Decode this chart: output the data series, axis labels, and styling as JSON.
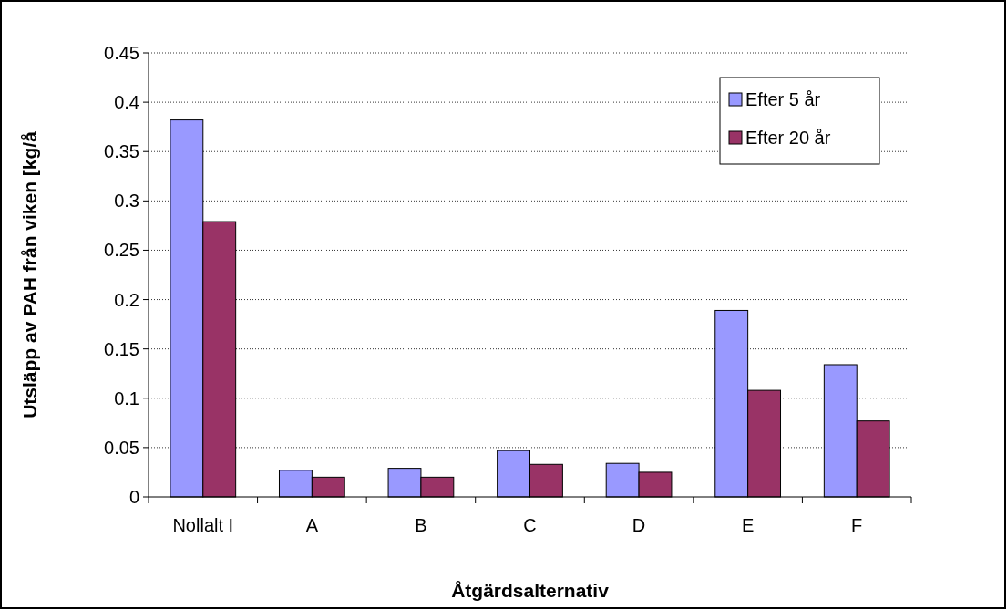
{
  "chart_data": {
    "type": "bar",
    "xlabel": "Åtgärdsalternativ",
    "ylabel": "Utsläpp av PAH från viken [kg/å",
    "categories": [
      "Nollalt I",
      "A",
      "B",
      "C",
      "D",
      "E",
      "F"
    ],
    "series": [
      {
        "name": "Efter 5 år",
        "color": "#9999ff",
        "values": [
          0.382,
          0.027,
          0.029,
          0.047,
          0.034,
          0.189,
          0.134
        ]
      },
      {
        "name": "Efter 20 år",
        "color": "#993366",
        "values": [
          0.279,
          0.02,
          0.02,
          0.033,
          0.025,
          0.108,
          0.077
        ]
      }
    ],
    "ylim": [
      0,
      0.45
    ],
    "yticks": [
      0,
      0.05,
      0.1,
      0.15,
      0.2,
      0.25,
      0.3,
      0.35,
      0.4,
      0.45
    ],
    "grid": "y",
    "legend": "top right"
  }
}
